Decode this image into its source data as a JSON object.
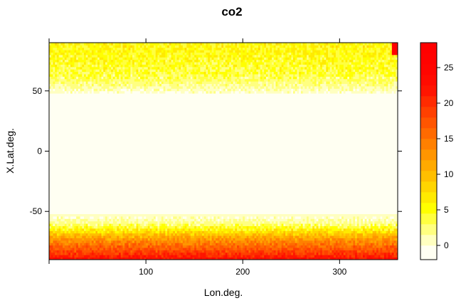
{
  "chart_data": {
    "type": "heatmap",
    "title": "co2",
    "xlabel": "Lon.deg.",
    "ylabel": "X.Lat.deg.",
    "xlim": [
      0,
      360
    ],
    "ylim": [
      -90,
      90
    ],
    "x_ticks": [
      100,
      200,
      300
    ],
    "x_tick_labels": [
      "100",
      "200",
      "300"
    ],
    "y_ticks": [
      -50,
      0,
      50
    ],
    "y_tick_labels": [
      "-50",
      "0",
      "50"
    ],
    "colorbar": {
      "range": [
        -2,
        28.5
      ],
      "ticks": [
        0,
        5,
        10,
        15,
        20,
        25
      ],
      "tick_labels": [
        "0",
        "5",
        "10",
        "15",
        "20",
        "25"
      ],
      "breaks": [
        -2,
        0,
        1.5,
        3,
        4.5,
        6,
        7.5,
        9,
        10.5,
        12,
        13.5,
        15,
        16.5,
        18,
        19.5,
        21,
        22.5,
        24,
        25.5,
        27,
        28.5
      ],
      "colors": [
        "#FFFFF2",
        "#FFFFC0",
        "#FFFF80",
        "#FFFF40",
        "#FFFF00",
        "#FFEA00",
        "#FFD500",
        "#FFBF00",
        "#FFAA00",
        "#FF9500",
        "#FF8000",
        "#FF6A00",
        "#FF5500",
        "#FF4000",
        "#FF2B00",
        "#FF1500",
        "#FF0B00",
        "#FF0500",
        "#FF0200",
        "#FF0000"
      ]
    },
    "grid": {
      "lon_cell_deg": 2,
      "lat_cell_deg": 2,
      "lat_profile": [
        {
          "lat": -90,
          "value": 23
        },
        {
          "lat": -84,
          "value": 19
        },
        {
          "lat": -78,
          "value": 15.5
        },
        {
          "lat": -72,
          "value": 12
        },
        {
          "lat": -68,
          "value": 8.5
        },
        {
          "lat": -64,
          "value": 5
        },
        {
          "lat": -60,
          "value": 2
        },
        {
          "lat": -55,
          "value": 0.6
        },
        {
          "lat": -50,
          "value": -0.6
        },
        {
          "lat": 45,
          "value": -0.6
        },
        {
          "lat": 50,
          "value": 0.6
        },
        {
          "lat": 56,
          "value": 2.2
        },
        {
          "lat": 64,
          "value": 3.8
        },
        {
          "lat": 74,
          "value": 4.6
        },
        {
          "lat": 82,
          "value": 5.2
        },
        {
          "lat": 90,
          "value": 5.6
        }
      ],
      "hotspot": {
        "lon_range": [
          355,
          360
        ],
        "lat_range": [
          80,
          90
        ],
        "value": 26
      }
    }
  }
}
